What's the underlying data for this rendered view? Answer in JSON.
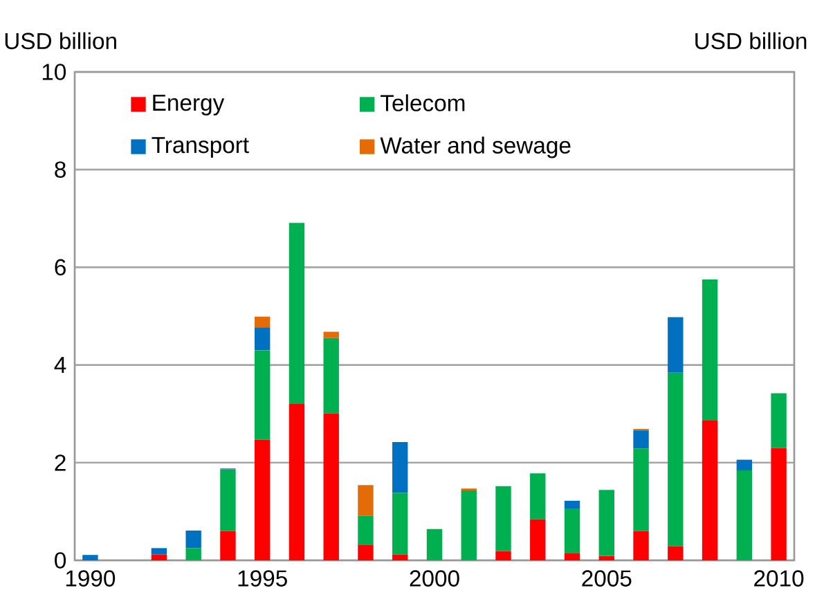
{
  "chart_data": {
    "type": "bar",
    "stacked": true,
    "ylabel": "USD billion",
    "y2label": "USD billion",
    "x": [
      1990,
      1991,
      1992,
      1993,
      1994,
      1995,
      1996,
      1997,
      1998,
      1999,
      2000,
      2001,
      2002,
      2003,
      2004,
      2005,
      2006,
      2007,
      2008,
      2009,
      2010
    ],
    "series": [
      {
        "name": "Energy",
        "color": "#ff0000",
        "values": [
          0,
          0,
          0.12,
          0,
          0.6,
          2.47,
          3.21,
          3.01,
          0.32,
          0.12,
          0,
          0,
          0.19,
          0.84,
          0.15,
          0.09,
          0.6,
          0.29,
          2.87,
          0,
          2.3
        ]
      },
      {
        "name": "Telecom",
        "color": "#00b050",
        "values": [
          0,
          0,
          0,
          0.25,
          1.26,
          1.83,
          3.7,
          1.54,
          0.59,
          1.26,
          0.64,
          1.43,
          1.33,
          0.94,
          0.9,
          1.35,
          1.69,
          3.55,
          2.88,
          1.84,
          1.12
        ]
      },
      {
        "name": "Transport",
        "color": "#0070c0",
        "values": [
          0.11,
          0,
          0.13,
          0.36,
          0.02,
          0.47,
          0,
          0,
          0,
          1.04,
          0,
          0,
          0,
          0,
          0.17,
          0,
          0.37,
          1.14,
          0,
          0.22,
          0
        ]
      },
      {
        "name": "Water and sewage",
        "color": "#e36c09",
        "values": [
          0,
          0,
          0,
          0,
          0,
          0.22,
          0,
          0.13,
          0.63,
          0,
          0,
          0.04,
          0,
          0,
          0,
          0,
          0.03,
          0,
          0,
          0,
          0
        ]
      }
    ],
    "xlim": [
      1989.55,
      2010.45
    ],
    "ylim": [
      0,
      10
    ],
    "xticks": [
      1990,
      1995,
      2000,
      2005,
      2010
    ],
    "yticks": [
      0,
      2,
      4,
      6,
      8,
      10
    ],
    "grid": "y",
    "legend": "top"
  }
}
